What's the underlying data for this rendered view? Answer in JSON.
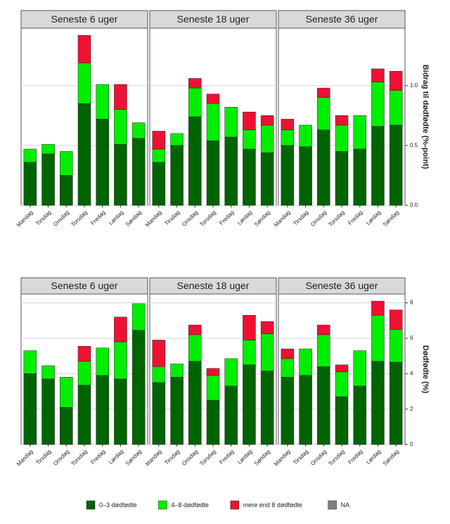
{
  "chart_data": [
    {
      "type": "bar",
      "stacked": true,
      "title": "Seneste 6 uger",
      "categories": [
        "Mandag",
        "Tirsdag",
        "Onsdag",
        "Torsdag",
        "Fredag",
        "Lørdag",
        "Søndag"
      ],
      "series": [
        {
          "name": "0–3 dødfødte",
          "color": "#006400",
          "values": [
            0.36,
            0.43,
            0.25,
            0.85,
            0.72,
            0.51,
            0.56
          ]
        },
        {
          "name": "4–8 dødfødte",
          "color": "#00ee00",
          "values": [
            0.11,
            0.08,
            0.2,
            0.34,
            0.29,
            0.29,
            0.13
          ]
        },
        {
          "name": "mere end 8 dødfødte",
          "color": "#ee1133",
          "values": [
            0,
            0,
            0,
            0.23,
            0,
            0.21,
            0
          ]
        },
        {
          "name": "NA",
          "color": "#808080",
          "values": [
            null,
            null,
            null,
            null,
            null,
            null,
            null
          ]
        }
      ],
      "ylim": [
        0,
        1.48
      ],
      "yticks": [
        {
          "value": 0,
          "label": "0.0"
        },
        0.5,
        {
          "value": 1,
          "label": "1.0"
        }
      ]
    },
    {
      "type": "bar",
      "stacked": true,
      "title": "Seneste 18 uger",
      "categories": [
        "Mandag",
        "Tirsdag",
        "Onsdag",
        "Torsdag",
        "Fredag",
        "Lørdag",
        "Søndag"
      ],
      "series": [
        {
          "name": "0–3 dødfødte",
          "color": "#006400",
          "values": [
            0.36,
            0.5,
            0.74,
            0.54,
            0.57,
            0.47,
            0.44
          ]
        },
        {
          "name": "4–8 dødfødte",
          "color": "#00ee00",
          "values": [
            0.11,
            0.1,
            0.24,
            0.31,
            0.25,
            0.16,
            0.23
          ]
        },
        {
          "name": "mere end 8 dødfødte",
          "color": "#ee1133",
          "values": [
            0.15,
            0,
            0.08,
            0.08,
            0,
            0.15,
            0.08
          ]
        }
      ],
      "ylim": [
        0,
        1.48
      ],
      "yticks": [
        {
          "value": 0,
          "label": "0.0"
        },
        0.5,
        {
          "value": 1,
          "label": "1.0"
        }
      ]
    },
    {
      "type": "bar",
      "stacked": true,
      "title": "Seneste 36 uger",
      "ylabel": "Bidrag til dødfødte (%-point)",
      "categories": [
        "Mandag",
        "Tirsdag",
        "Onsdag",
        "Torsdag",
        "Fredag",
        "Lørdag",
        "Søndag"
      ],
      "series": [
        {
          "name": "0–3 dødfødte",
          "color": "#006400",
          "values": [
            0.5,
            0.49,
            0.63,
            0.45,
            0.47,
            0.66,
            0.67
          ]
        },
        {
          "name": "4–8 dødfødte",
          "color": "#00ee00",
          "values": [
            0.13,
            0.18,
            0.27,
            0.22,
            0.28,
            0.37,
            0.29
          ]
        },
        {
          "name": "mere end 8 dødfødte",
          "color": "#ee1133",
          "values": [
            0.09,
            0,
            0.08,
            0.08,
            0,
            0.11,
            0.16
          ]
        }
      ],
      "ylim": [
        0,
        1.48
      ],
      "yticks": [
        {
          "value": 0,
          "label": "0.0"
        },
        0.5,
        {
          "value": 1,
          "label": "1.0"
        }
      ]
    },
    {
      "type": "bar",
      "stacked": true,
      "title": "Seneste 6 uger",
      "categories": [
        "Mandag",
        "Tirsdag",
        "Onsdag",
        "Torsdag",
        "Fredag",
        "Lørdag",
        "Søndag"
      ],
      "series": [
        {
          "name": "0–3 dødfødte",
          "color": "#006400",
          "values": [
            4.0,
            3.7,
            2.1,
            3.35,
            3.9,
            3.7,
            6.45
          ]
        },
        {
          "name": "4–8 dødfødte",
          "color": "#00ee00",
          "values": [
            1.3,
            0.75,
            1.7,
            1.35,
            1.55,
            2.1,
            1.5
          ]
        },
        {
          "name": "mere end 8 dødfødte",
          "color": "#ee1133",
          "values": [
            0,
            0,
            0,
            0.85,
            0,
            1.4,
            0
          ]
        }
      ],
      "ylim": [
        0,
        8.5
      ],
      "yticks": [
        0,
        2,
        4,
        6,
        8
      ]
    },
    {
      "type": "bar",
      "stacked": true,
      "title": "Seneste 18 uger",
      "categories": [
        "Mandag",
        "Tirsdag",
        "Onsdag",
        "Torsdag",
        "Fredag",
        "Lørdag",
        "Søndag"
      ],
      "series": [
        {
          "name": "0–3 dødfødte",
          "color": "#006400",
          "values": [
            3.5,
            3.8,
            4.7,
            2.5,
            3.3,
            4.5,
            4.15
          ]
        },
        {
          "name": "4–8 dødfødte",
          "color": "#00ee00",
          "values": [
            0.9,
            0.75,
            1.5,
            1.4,
            1.55,
            1.4,
            2.1
          ]
        },
        {
          "name": "mere end 8 dødfødte",
          "color": "#ee1133",
          "values": [
            1.5,
            0,
            0.55,
            0.4,
            0,
            1.4,
            0.7
          ]
        }
      ],
      "ylim": [
        0,
        8.5
      ],
      "yticks": [
        0,
        2,
        4,
        6,
        8
      ]
    },
    {
      "type": "bar",
      "stacked": true,
      "title": "Seneste 36 uger",
      "ylabel": "Dødfødte (%)",
      "categories": [
        "Mandag",
        "Tirsdag",
        "Onsdag",
        "Torsdag",
        "Fredag",
        "Lørdag",
        "Søndag"
      ],
      "series": [
        {
          "name": "0–3 dødfødte",
          "color": "#006400",
          "values": [
            3.8,
            3.9,
            4.4,
            2.7,
            3.3,
            4.7,
            4.65
          ]
        },
        {
          "name": "4–8 dødfødte",
          "color": "#00ee00",
          "values": [
            1.05,
            1.5,
            1.8,
            1.4,
            2.0,
            2.6,
            1.85
          ]
        },
        {
          "name": "mere end 8 dødfødte",
          "color": "#ee1133",
          "values": [
            0.55,
            0,
            0.55,
            0.4,
            0,
            0.8,
            1.1
          ]
        }
      ],
      "ylim": [
        0,
        8.5
      ],
      "yticks": [
        0,
        2,
        4,
        6,
        8
      ]
    }
  ]
}
